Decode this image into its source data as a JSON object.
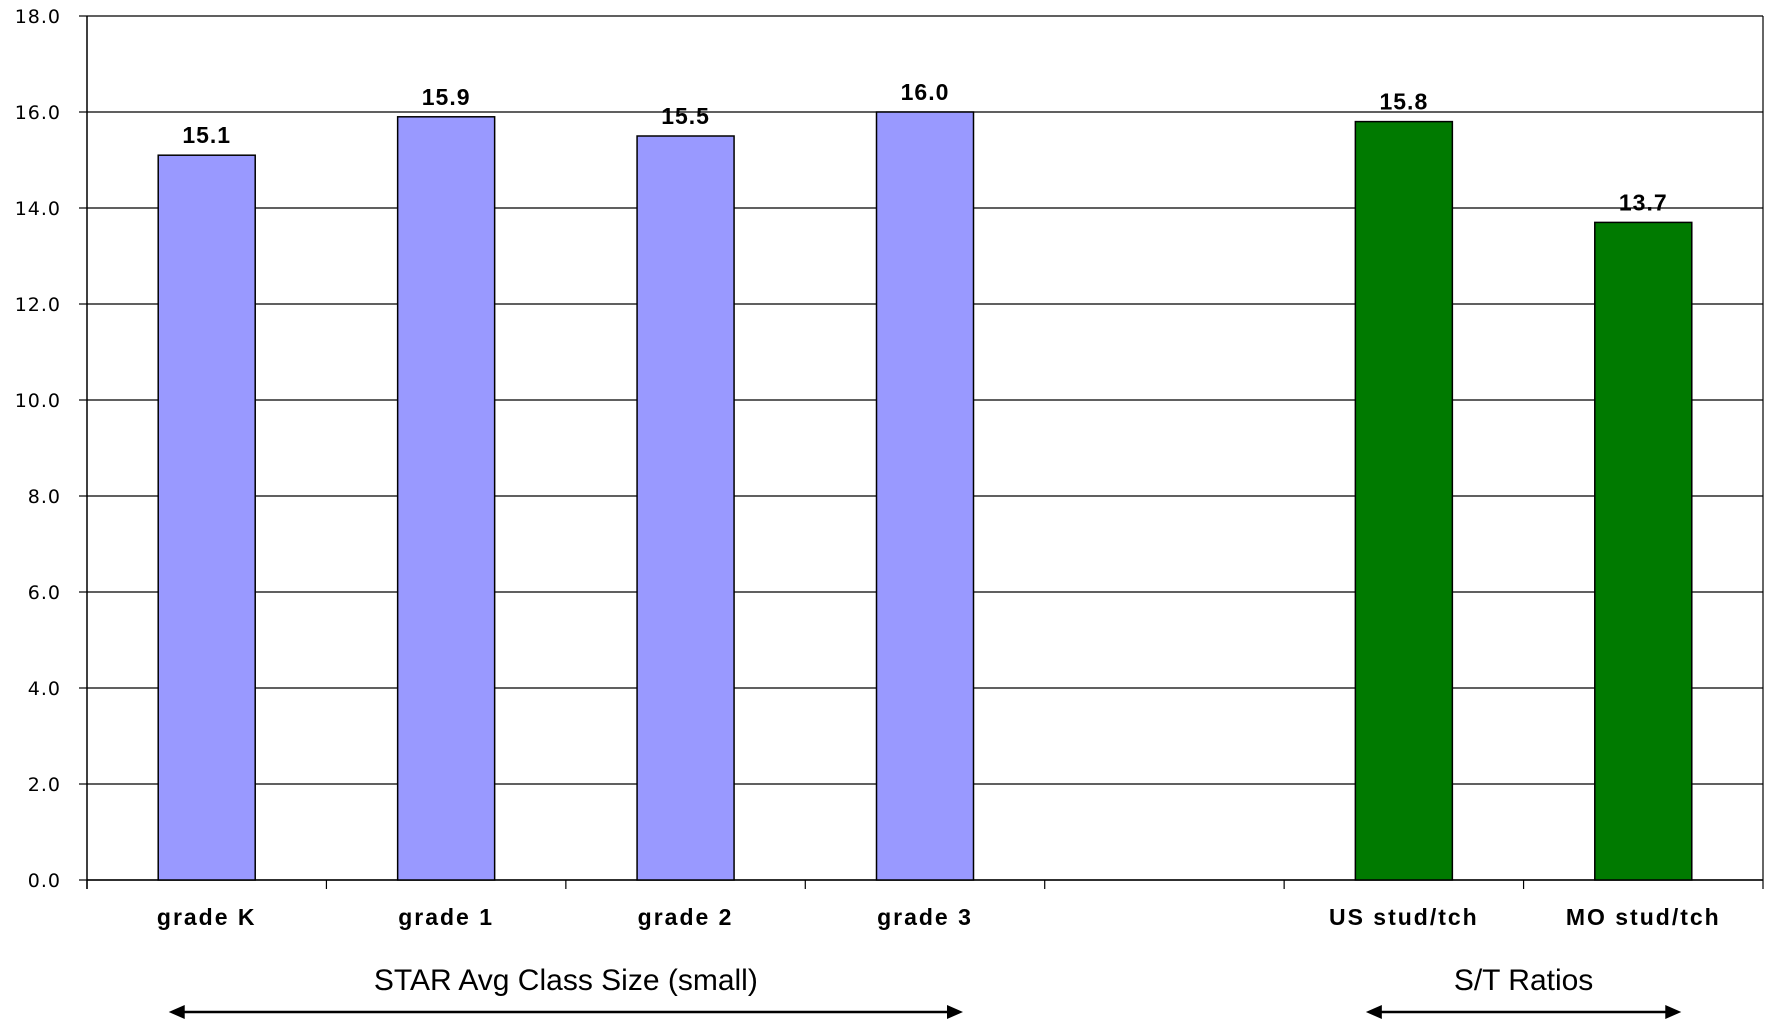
{
  "chart_data": {
    "type": "bar",
    "categories": [
      "grade K",
      "grade 1",
      "grade 2",
      "grade 3",
      "",
      "US stud/tch",
      "MO stud/tch"
    ],
    "values": [
      15.1,
      15.9,
      15.5,
      16.0,
      null,
      15.8,
      13.7
    ],
    "value_labels": [
      "15.1",
      "15.9",
      "15.5",
      "16.0",
      "",
      "15.8",
      "13.7"
    ],
    "bar_colors": [
      "#9999ff",
      "#9999ff",
      "#9999ff",
      "#9999ff",
      "",
      "#007a00",
      "#007a00"
    ],
    "ylim": [
      0,
      18
    ],
    "yticks": [
      "0.0",
      "2.0",
      "4.0",
      "6.0",
      "8.0",
      "10.0",
      "12.0",
      "14.0",
      "16.0",
      "18.0"
    ],
    "grid": true,
    "groups": [
      {
        "label": "STAR Avg Class Size (small)",
        "from": 0,
        "to": 3
      },
      {
        "label": "S/T  Ratios",
        "from": 5,
        "to": 6
      }
    ]
  }
}
